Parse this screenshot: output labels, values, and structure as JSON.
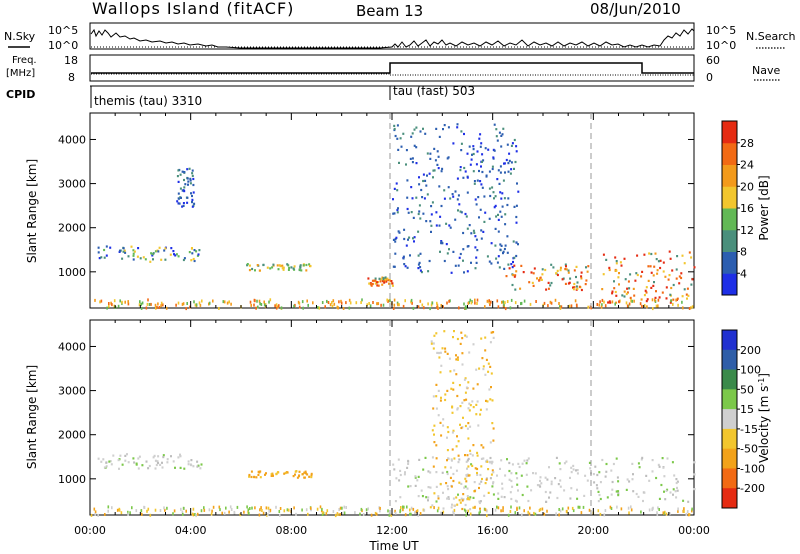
{
  "header": {
    "title": "Wallops Island (fitACF)",
    "beam": "Beam 13",
    "date": "08/Jun/2010"
  },
  "status_panel": {
    "nsky_label": "N.Sky",
    "nsearch_label": "N.Search",
    "freq_label_line1": "Freq.",
    "freq_label_line2": "[MHz]",
    "nave_label": "Nave",
    "cpid_label": "CPID",
    "nsky_ticks": [
      "10^5",
      "10^0"
    ],
    "nsearch_ticks": [
      "10^5",
      "10^0"
    ],
    "freq_ticks": [
      "18",
      "8"
    ],
    "nave_ticks": [
      "60",
      "0"
    ],
    "cpid_segments": [
      {
        "name": "themis (tau) 3310",
        "start_hour": 0,
        "end_hour": 12
      },
      {
        "name": "tau (fast) 503",
        "start_hour": 12,
        "end_hour": 24
      }
    ]
  },
  "chart_data": [
    {
      "type": "heatmap",
      "panel": "power",
      "ylabel": "Slant Range [km]",
      "xlabel": "",
      "ylim": [
        180,
        4600
      ],
      "xlim": [
        0,
        24
      ],
      "y_ticks": [
        1000,
        2000,
        3000,
        4000
      ],
      "colorbar": {
        "label": "Power [dB]",
        "ticks": [
          4,
          8,
          12,
          16,
          20,
          24,
          28
        ],
        "colors": [
          "#1e2fe6",
          "#2c5eb0",
          "#4a8f7c",
          "#62b855",
          "#f2c62e",
          "#f39a1b",
          "#f26a14",
          "#e52b12"
        ]
      },
      "regions": [
        {
          "t": [
            0.3,
            4.5
          ],
          "r": [
            1250,
            1600
          ],
          "level": "low-mid"
        },
        {
          "t": [
            3.4,
            4.1
          ],
          "r": [
            2500,
            3400
          ],
          "level": "low"
        },
        {
          "t": [
            6.2,
            8.8
          ],
          "r": [
            1050,
            1200
          ],
          "level": "mid"
        },
        {
          "t": [
            11.0,
            12.0
          ],
          "r": [
            700,
            900
          ],
          "level": "high"
        },
        {
          "t": [
            12.0,
            17.0
          ],
          "r": [
            1000,
            4400
          ],
          "level": "low"
        },
        {
          "t": [
            16.5,
            19.8
          ],
          "r": [
            600,
            1200
          ],
          "level": "high"
        },
        {
          "t": [
            20.3,
            24.0
          ],
          "r": [
            300,
            1500
          ],
          "level": "very-high"
        }
      ]
    },
    {
      "type": "heatmap",
      "panel": "velocity",
      "ylabel": "Slant Range [km]",
      "xlabel": "Time UT",
      "ylim": [
        180,
        4600
      ],
      "xlim": [
        0,
        24
      ],
      "y_ticks": [
        1000,
        2000,
        3000,
        4000
      ],
      "x_tick_labels": [
        "00:00",
        "04:00",
        "08:00",
        "12:00",
        "16:00",
        "20:00",
        "00:00"
      ],
      "colorbar": {
        "label": "Velocity [m s^-1]",
        "ticks": [
          "200",
          "100",
          "50",
          "15",
          "-15",
          "-50",
          "-100",
          "-200"
        ],
        "colors": [
          "#2030d0",
          "#2f5ea8",
          "#3a8a4a",
          "#7cc84a",
          "#cfcfcf",
          "#f2c62e",
          "#f2a21a",
          "#f26a14",
          "#e52b12"
        ]
      },
      "regions": [
        {
          "t": [
            0.3,
            4.5
          ],
          "r": [
            1250,
            1600
          ],
          "level": "grey"
        },
        {
          "t": [
            6.2,
            8.8
          ],
          "r": [
            1050,
            1200
          ],
          "level": "orange"
        },
        {
          "t": [
            12.0,
            24.0
          ],
          "r": [
            500,
            1500
          ],
          "level": "grey"
        },
        {
          "t": [
            13.5,
            16.0
          ],
          "r": [
            300,
            4400
          ],
          "level": "yellow"
        }
      ]
    }
  ]
}
